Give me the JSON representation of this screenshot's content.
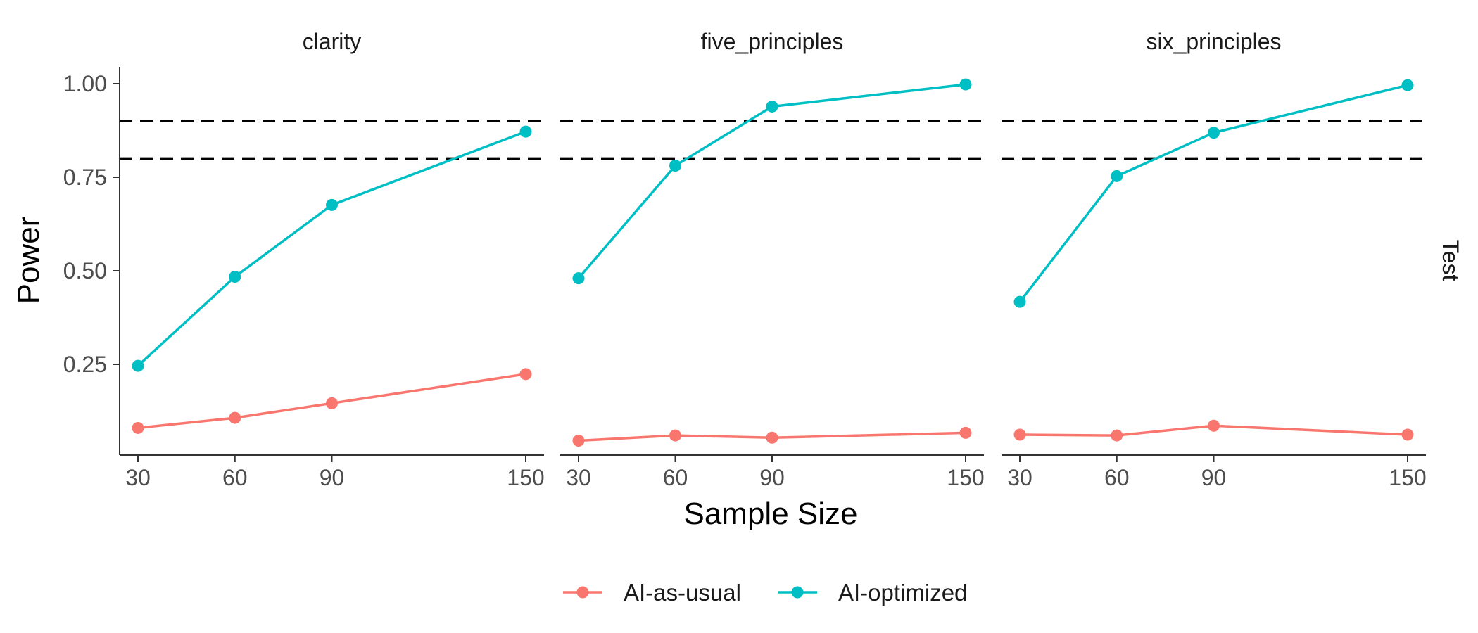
{
  "chart_data": {
    "type": "line",
    "facet_variable": "Test",
    "xlabel": "Sample Size",
    "ylabel": "Power",
    "x_ticks": [
      30,
      60,
      90,
      150
    ],
    "y_ticks": [
      "0.25",
      "0.50",
      "0.75",
      "1.00"
    ],
    "xlim": [
      30,
      150
    ],
    "ylim": [
      0.0,
      1.0
    ],
    "reference_lines": [
      0.8,
      0.9
    ],
    "grid": false,
    "legend_position": "bottom",
    "series_colors": {
      "AI-as-usual": "#F8766D",
      "AI-optimized": "#00BFC4"
    },
    "panels": [
      {
        "title": "clarity",
        "x": [
          30,
          60,
          90,
          150
        ],
        "series": [
          {
            "name": "AI-as-usual",
            "values": [
              0.08,
              0.107,
              0.146,
              0.224
            ]
          },
          {
            "name": "AI-optimized",
            "values": [
              0.246,
              0.484,
              0.676,
              0.872
            ]
          }
        ]
      },
      {
        "title": "five_principles",
        "x": [
          30,
          60,
          90,
          150
        ],
        "series": [
          {
            "name": "AI-as-usual",
            "values": [
              0.046,
              0.06,
              0.054,
              0.067
            ]
          },
          {
            "name": "AI-optimized",
            "values": [
              0.48,
              0.781,
              0.939,
              0.998
            ]
          }
        ]
      },
      {
        "title": "six_principles",
        "x": [
          30,
          60,
          90,
          150
        ],
        "series": [
          {
            "name": "AI-as-usual",
            "values": [
              0.062,
              0.06,
              0.086,
              0.062
            ]
          },
          {
            "name": "AI-optimized",
            "values": [
              0.417,
              0.753,
              0.869,
              0.996
            ]
          }
        ]
      }
    ]
  },
  "legend": {
    "items": [
      {
        "label": "AI-as-usual",
        "color": "#F8766D"
      },
      {
        "label": "AI-optimized",
        "color": "#00BFC4"
      }
    ]
  }
}
